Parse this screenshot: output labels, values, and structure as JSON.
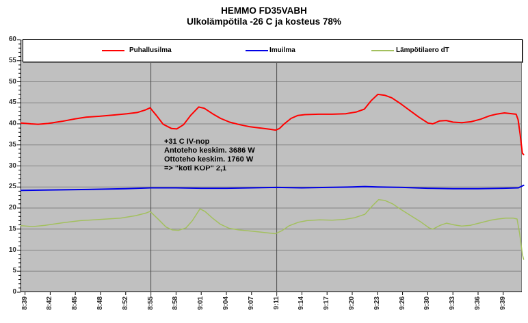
{
  "title": {
    "line1": "HEMMO FD35VABH",
    "line2": "Ulkolämpötila -26 C ja kosteus 78%"
  },
  "chart_data": {
    "type": "line",
    "title": "HEMMO FD35VABH",
    "subtitle": "Ulkolämpötila -26 C ja kosteus 78%",
    "plot_background": "#c0c0c0",
    "gridline_color": "#828282",
    "grid": true,
    "legend_position": "top",
    "y_axis": {
      "min": 0,
      "max": 60,
      "major_step": 5,
      "minor_step": 1,
      "tick_labels": [
        "0",
        "5",
        "10",
        "15",
        "20",
        "25",
        "30",
        "35",
        "40",
        "45",
        "50",
        "55",
        "60"
      ]
    },
    "x_axis": {
      "unit": "time (hh:mm), category index 0 = first labeled tick",
      "label_rotation": -90,
      "labels": [
        "8:39",
        "8:42",
        "8:45",
        "8:48",
        "8:52",
        "8:55",
        "8:58",
        "9:01",
        "9:04",
        "9:07",
        "9:11",
        "9:14",
        "9:17",
        "9:20",
        "9:23",
        "9:26",
        "9:30",
        "9:33",
        "9:36",
        "9:39"
      ]
    },
    "vertical_markers": [
      {
        "label": "8:55",
        "index": 5,
        "color": "#4a4a4a"
      },
      {
        "label": "9:11",
        "index": 10,
        "color": "#4a4a4a"
      }
    ],
    "annotation": {
      "lines": [
        "+31 C IV-nop",
        "Antoteho keskim. 3686 W",
        "Ottoteho keskim. 1760 W",
        "=> \"koti KOP\" 2,1"
      ]
    },
    "series": [
      {
        "name": "Puhallusilma",
        "color": "#ff0000",
        "width": 2,
        "points": [
          [
            -0.16,
            40.2
          ],
          [
            0.24,
            40
          ],
          [
            0.52,
            39.9
          ],
          [
            0.92,
            40.1
          ],
          [
            1.47,
            40.6
          ],
          [
            2.0,
            41.2
          ],
          [
            2.42,
            41.6
          ],
          [
            2.96,
            41.8
          ],
          [
            3.51,
            42.1
          ],
          [
            4.05,
            42.4
          ],
          [
            4.46,
            42.7
          ],
          [
            4.78,
            43.3
          ],
          [
            4.97,
            43.8
          ],
          [
            5.22,
            42
          ],
          [
            5.49,
            39.9
          ],
          [
            5.82,
            38.9
          ],
          [
            6.03,
            38.8
          ],
          [
            6.3,
            39.8
          ],
          [
            6.58,
            42
          ],
          [
            6.9,
            44
          ],
          [
            7.12,
            43.7
          ],
          [
            7.45,
            42.4
          ],
          [
            7.77,
            41.3
          ],
          [
            8.13,
            40.4
          ],
          [
            8.53,
            39.8
          ],
          [
            8.94,
            39.3
          ],
          [
            9.35,
            39
          ],
          [
            9.76,
            38.7
          ],
          [
            9.95,
            38.5
          ],
          [
            10.11,
            38.9
          ],
          [
            10.3,
            40
          ],
          [
            10.57,
            41.3
          ],
          [
            10.84,
            42
          ],
          [
            11.12,
            42.2
          ],
          [
            11.66,
            42.3
          ],
          [
            12.2,
            42.3
          ],
          [
            12.74,
            42.4
          ],
          [
            13.15,
            42.8
          ],
          [
            13.48,
            43.5
          ],
          [
            13.75,
            45.5
          ],
          [
            14.02,
            47
          ],
          [
            14.29,
            46.8
          ],
          [
            14.57,
            46.2
          ],
          [
            14.92,
            44.8
          ],
          [
            15.33,
            43
          ],
          [
            15.65,
            41.6
          ],
          [
            16.01,
            40.2
          ],
          [
            16.2,
            40
          ],
          [
            16.47,
            40.7
          ],
          [
            16.74,
            40.8
          ],
          [
            17.01,
            40.4
          ],
          [
            17.36,
            40.3
          ],
          [
            17.72,
            40.5
          ],
          [
            18.1,
            41.1
          ],
          [
            18.45,
            41.9
          ],
          [
            18.72,
            42.3
          ],
          [
            19.05,
            42.6
          ],
          [
            19.35,
            42.4
          ],
          [
            19.51,
            42.3
          ],
          [
            19.59,
            41
          ],
          [
            19.67,
            37.5
          ],
          [
            19.76,
            33
          ],
          [
            19.81,
            32.7
          ]
        ]
      },
      {
        "name": "Imuilma",
        "color": "#0000e6",
        "width": 2,
        "points": [
          [
            -0.16,
            24.2
          ],
          [
            1,
            24.3
          ],
          [
            2.5,
            24.4
          ],
          [
            4,
            24.6
          ],
          [
            5,
            24.8
          ],
          [
            6,
            24.8
          ],
          [
            7,
            24.7
          ],
          [
            8,
            24.7
          ],
          [
            9,
            24.8
          ],
          [
            10,
            24.9
          ],
          [
            11,
            24.8
          ],
          [
            12,
            24.9
          ],
          [
            13,
            25
          ],
          [
            13.5,
            25.1
          ],
          [
            14,
            25
          ],
          [
            15,
            24.9
          ],
          [
            15.5,
            24.8
          ],
          [
            16,
            24.7
          ],
          [
            17,
            24.6
          ],
          [
            18,
            24.6
          ],
          [
            19,
            24.7
          ],
          [
            19.6,
            24.8
          ],
          [
            19.81,
            25.4
          ]
        ]
      },
      {
        "name": "Lämpötilaero dT",
        "color": "#a3c05e",
        "width": 1.5,
        "points": [
          [
            -0.16,
            15.8
          ],
          [
            0.3,
            15.6
          ],
          [
            0.8,
            15.9
          ],
          [
            1.5,
            16.5
          ],
          [
            2.2,
            17
          ],
          [
            3,
            17.3
          ],
          [
            3.8,
            17.6
          ],
          [
            4.4,
            18.2
          ],
          [
            4.8,
            18.8
          ],
          [
            4.97,
            19.2
          ],
          [
            5.3,
            17.3
          ],
          [
            5.6,
            15.5
          ],
          [
            5.85,
            14.8
          ],
          [
            6.1,
            14.7
          ],
          [
            6.4,
            15.3
          ],
          [
            6.65,
            17
          ],
          [
            6.95,
            19.8
          ],
          [
            7.15,
            19.2
          ],
          [
            7.45,
            17.6
          ],
          [
            7.75,
            16.2
          ],
          [
            8.1,
            15.2
          ],
          [
            8.5,
            14.8
          ],
          [
            9,
            14.5
          ],
          [
            9.5,
            14.2
          ],
          [
            9.95,
            13.9
          ],
          [
            10.2,
            14.6
          ],
          [
            10.5,
            15.8
          ],
          [
            10.85,
            16.6
          ],
          [
            11.2,
            17
          ],
          [
            11.7,
            17.2
          ],
          [
            12.2,
            17.1
          ],
          [
            12.7,
            17.3
          ],
          [
            13.1,
            17.7
          ],
          [
            13.5,
            18.5
          ],
          [
            13.8,
            20.5
          ],
          [
            14.05,
            22
          ],
          [
            14.3,
            21.8
          ],
          [
            14.6,
            21
          ],
          [
            14.9,
            19.8
          ],
          [
            15.3,
            18.3
          ],
          [
            15.7,
            16.8
          ],
          [
            16.05,
            15.3
          ],
          [
            16.2,
            15
          ],
          [
            16.5,
            15.9
          ],
          [
            16.75,
            16.4
          ],
          [
            17.05,
            16
          ],
          [
            17.35,
            15.7
          ],
          [
            17.7,
            15.9
          ],
          [
            18.1,
            16.5
          ],
          [
            18.5,
            17.1
          ],
          [
            18.8,
            17.4
          ],
          [
            19.1,
            17.6
          ],
          [
            19.4,
            17.6
          ],
          [
            19.55,
            17.4
          ],
          [
            19.65,
            14
          ],
          [
            19.76,
            9
          ],
          [
            19.81,
            7.8
          ]
        ]
      }
    ]
  }
}
